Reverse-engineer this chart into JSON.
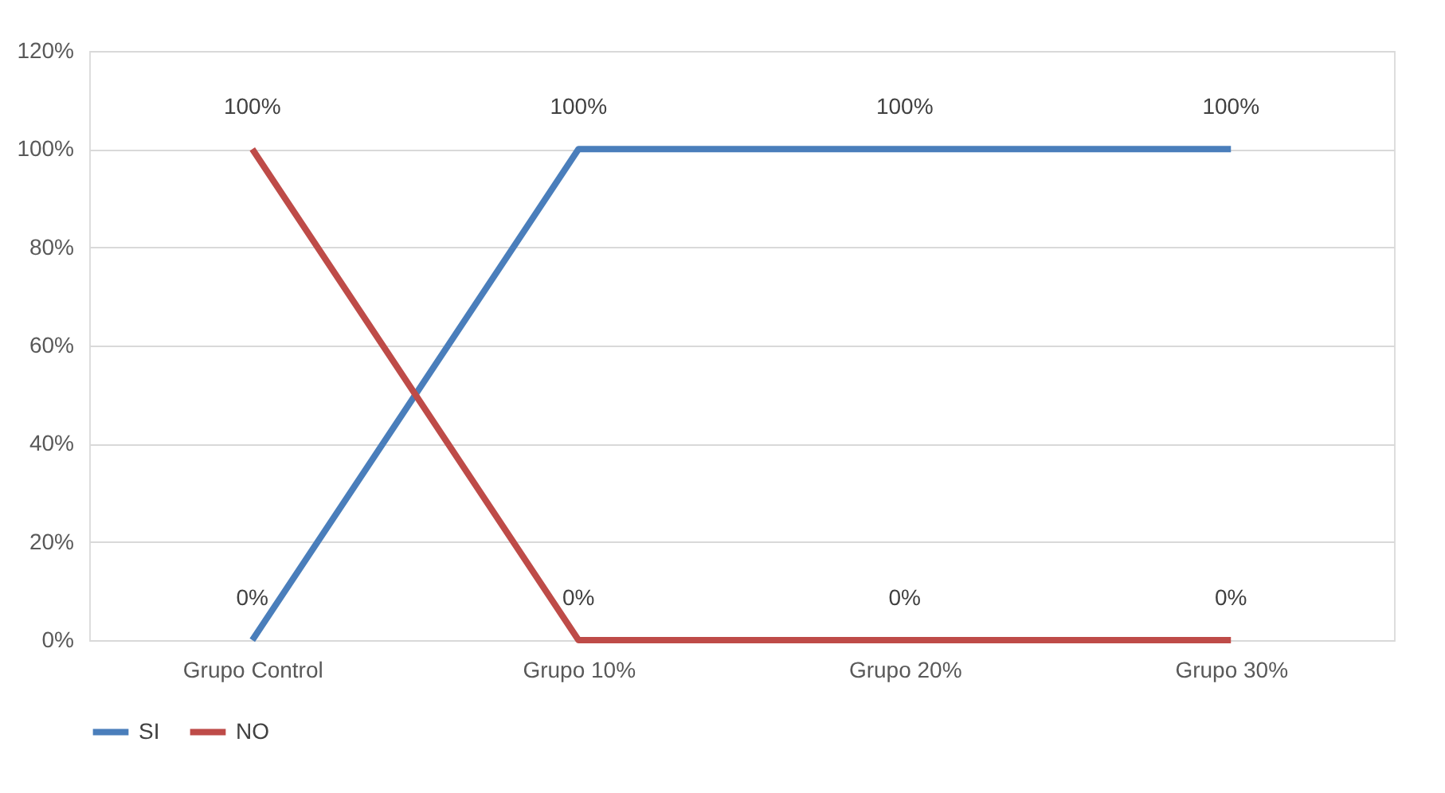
{
  "chart_data": {
    "type": "line",
    "categories": [
      "Grupo Control",
      "Grupo 10%",
      "Grupo 20%",
      "Grupo 30%"
    ],
    "series": [
      {
        "name": "SI",
        "color": "#4a7ebb",
        "values": [
          0,
          100,
          100,
          100
        ],
        "value_labels": [
          "0%",
          "100%",
          "100%",
          "100%"
        ]
      },
      {
        "name": "NO",
        "color": "#be4b48",
        "values": [
          100,
          0,
          0,
          0
        ],
        "value_labels": [
          "100%",
          "0%",
          "0%",
          "0%"
        ]
      }
    ],
    "ylim": [
      0,
      120
    ],
    "yticks": [
      {
        "value": 0,
        "label": "0%"
      },
      {
        "value": 20,
        "label": "20%"
      },
      {
        "value": 40,
        "label": "40%"
      },
      {
        "value": 60,
        "label": "60%"
      },
      {
        "value": 80,
        "label": "80%"
      },
      {
        "value": 100,
        "label": "100%"
      },
      {
        "value": 120,
        "label": "120%"
      }
    ],
    "grid": "y",
    "legend": "bottom"
  }
}
